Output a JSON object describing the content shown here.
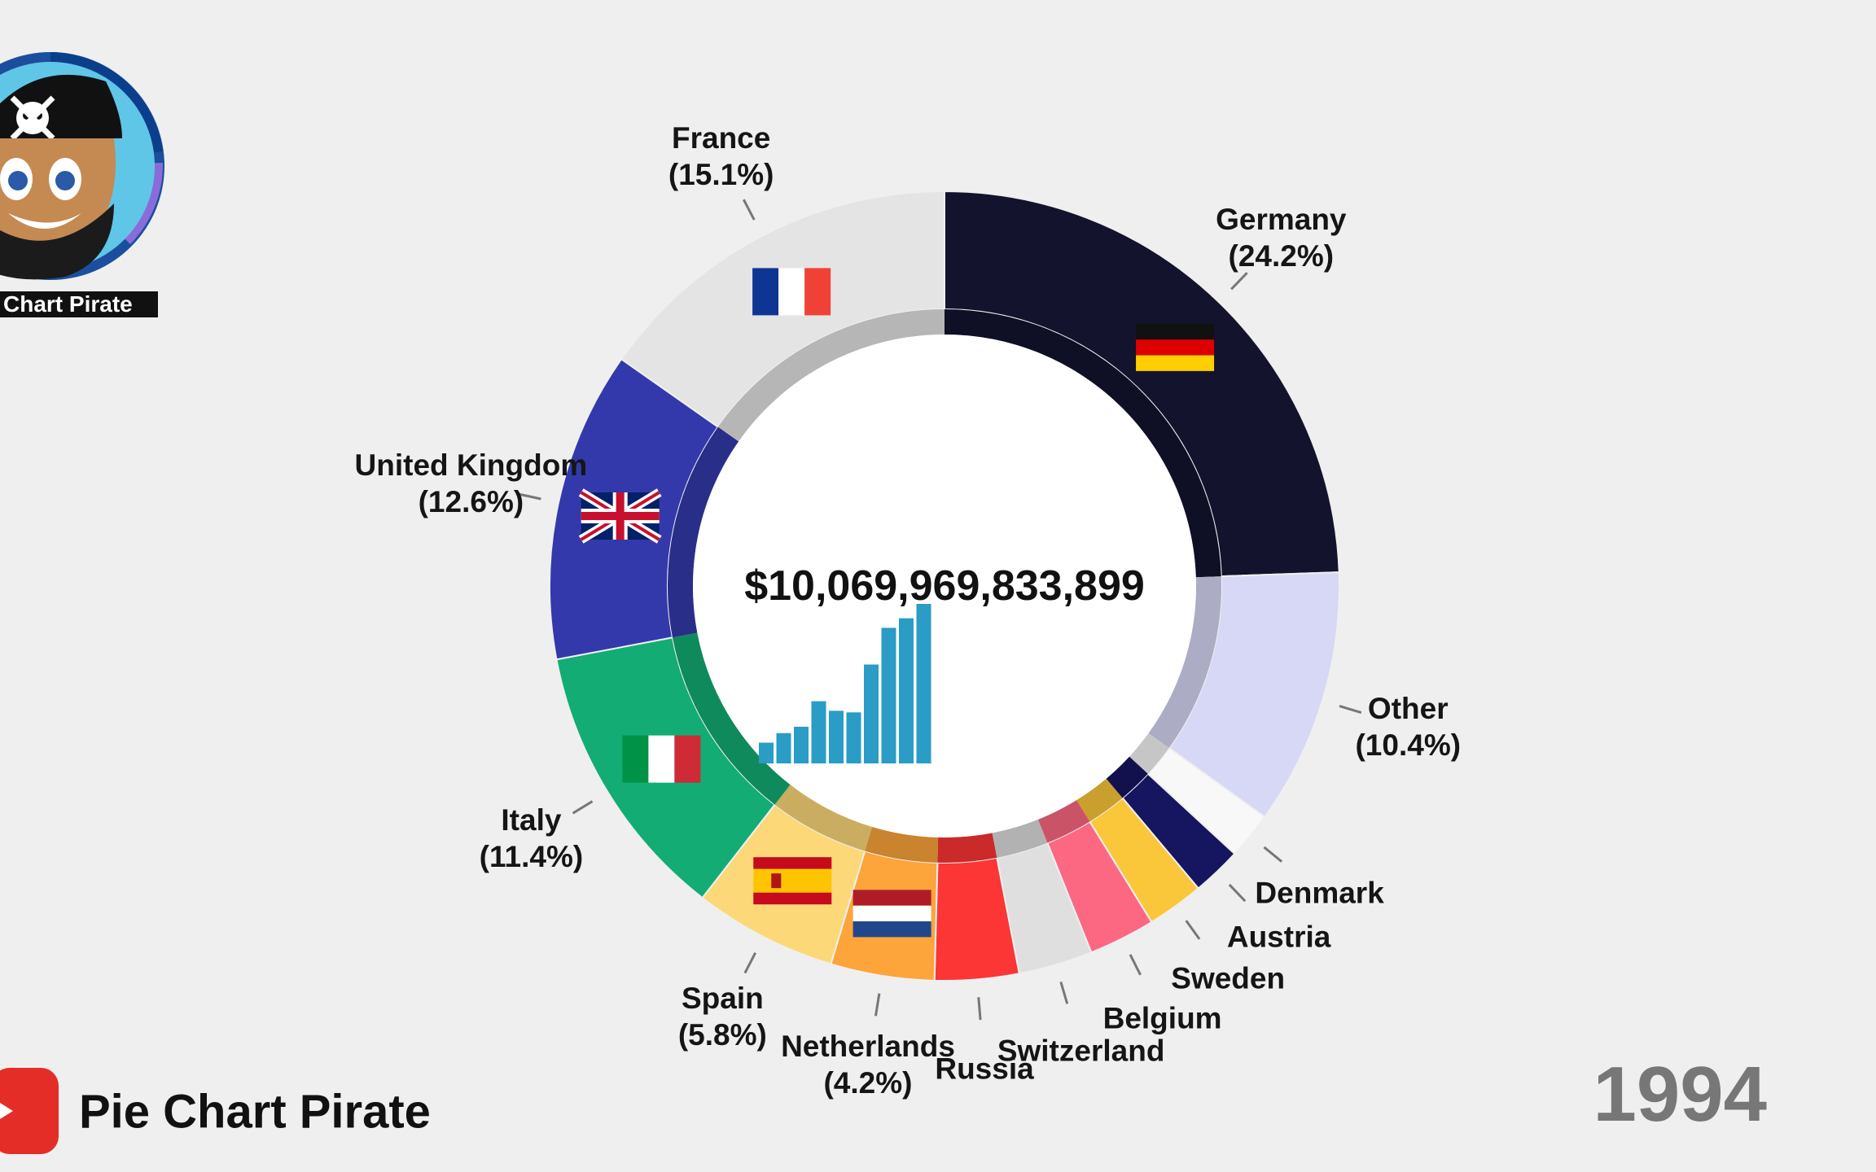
{
  "brand": {
    "avatar_label": "Chart Pirate",
    "channel_name": "Pie Chart Pirate",
    "avatar_icon": "pirate-avatar-icon",
    "logo_icon": "youtube-play-icon"
  },
  "year": "1994",
  "total_label": "$10,069,969,833,899",
  "chart_data": {
    "type": "pie",
    "variant": "donut",
    "center_value": "$10,069,969,833,899",
    "year": "1994",
    "slices": [
      {
        "name": "Germany",
        "label": "Germany",
        "pct": "(24.2%)",
        "value": 24.2,
        "color": "#13132e",
        "flag": "germany-flag-icon"
      },
      {
        "name": "Other",
        "label": "Other",
        "pct": "(10.4%)",
        "value": 10.4,
        "color": "#d7d8f5",
        "flag": ""
      },
      {
        "name": "Denmark",
        "label": "Denmark",
        "pct": "",
        "value": 1.9,
        "color": "#f8f8f8",
        "flag": ""
      },
      {
        "name": "Austria",
        "label": "Austria",
        "pct": "",
        "value": 2.0,
        "color": "#161560",
        "flag": ""
      },
      {
        "name": "Sweden",
        "label": "Sweden",
        "pct": "",
        "value": 2.3,
        "color": "#fbc73a",
        "flag": ""
      },
      {
        "name": "Belgium",
        "label": "Belgium",
        "pct": "",
        "value": 2.7,
        "color": "#fc6882",
        "flag": ""
      },
      {
        "name": "Switzerland",
        "label": "Switzerland",
        "pct": "",
        "value": 3.0,
        "color": "#dfdfdf",
        "flag": ""
      },
      {
        "name": "Russia",
        "label": "Russia",
        "pct": "",
        "value": 3.4,
        "color": "#fc3535",
        "flag": ""
      },
      {
        "name": "Netherlands",
        "label": "Netherlands",
        "pct": "(4.2%)",
        "value": 4.2,
        "color": "#fda43a",
        "flag": "netherlands-flag-icon"
      },
      {
        "name": "Spain",
        "label": "Spain",
        "pct": "(5.8%)",
        "value": 5.8,
        "color": "#fcd878",
        "flag": "spain-flag-icon"
      },
      {
        "name": "Italy",
        "label": "Italy",
        "pct": "(11.4%)",
        "value": 11.4,
        "color": "#13ac74",
        "flag": "italy-flag-icon"
      },
      {
        "name": "United Kingdom",
        "label": "United Kingdom",
        "pct": "(12.6%)",
        "value": 12.6,
        "color": "#3339ab",
        "flag": "uk-flag-icon"
      },
      {
        "name": "France",
        "label": "France",
        "pct": "(15.1%)",
        "value": 15.1,
        "color": "#e4e4e4",
        "flag": "france-flag-icon"
      }
    ],
    "history_bars": [
      0.13,
      0.19,
      0.23,
      0.39,
      0.33,
      0.32,
      0.62,
      0.85,
      0.91,
      1.0
    ],
    "history_color": "#2a9cc5"
  }
}
